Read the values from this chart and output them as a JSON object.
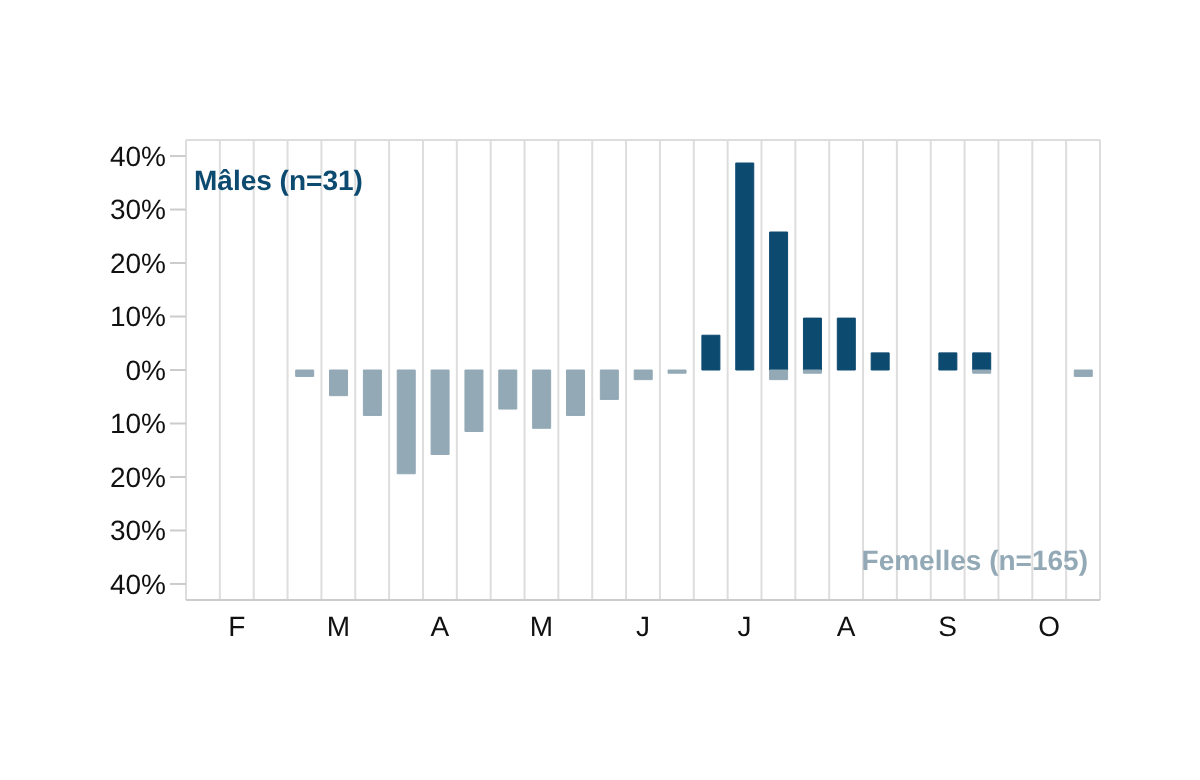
{
  "chart_data": {
    "type": "bar",
    "stacked": true,
    "categories": [
      null,
      "F",
      null,
      null,
      "M",
      null,
      null,
      "A",
      null,
      null,
      "M",
      null,
      null,
      "J",
      null,
      null,
      "J",
      null,
      null,
      "A",
      null,
      null,
      "S",
      null,
      null,
      "O",
      null
    ],
    "series": [
      {
        "name": "Mâles (n=31)",
        "color": "#0d4a70",
        "values": [
          0,
          0,
          0,
          0,
          0,
          0,
          0,
          0,
          0,
          0,
          0,
          0,
          0,
          0,
          0,
          6.5,
          38.7,
          25.8,
          9.7,
          9.7,
          3.2,
          0,
          3.2,
          3.2,
          0,
          0,
          0
        ]
      },
      {
        "name": "Femelles (n=165)",
        "color": "#93a9b6",
        "values": [
          0,
          0,
          0,
          -1.2,
          -4.8,
          -8.5,
          -19.4,
          -15.8,
          -11.5,
          -7.3,
          -10.9,
          -8.5,
          -5.5,
          -1.8,
          -0.6,
          0,
          0,
          -1.8,
          -0.6,
          0,
          0,
          0,
          0,
          -0.6,
          0,
          0,
          -1.2
        ]
      }
    ],
    "ylim": [
      -43,
      43
    ],
    "yticks": [
      {
        "value": 40,
        "label": "40%"
      },
      {
        "value": 30,
        "label": "30%"
      },
      {
        "value": 20,
        "label": "20%"
      },
      {
        "value": 10,
        "label": "10%"
      },
      {
        "value": 0,
        "label": "0%"
      },
      {
        "value": -10,
        "label": "10%"
      },
      {
        "value": -20,
        "label": "20%"
      },
      {
        "value": -30,
        "label": "30%"
      },
      {
        "value": -40,
        "label": "40%"
      }
    ],
    "grid": "x",
    "legend": false
  }
}
